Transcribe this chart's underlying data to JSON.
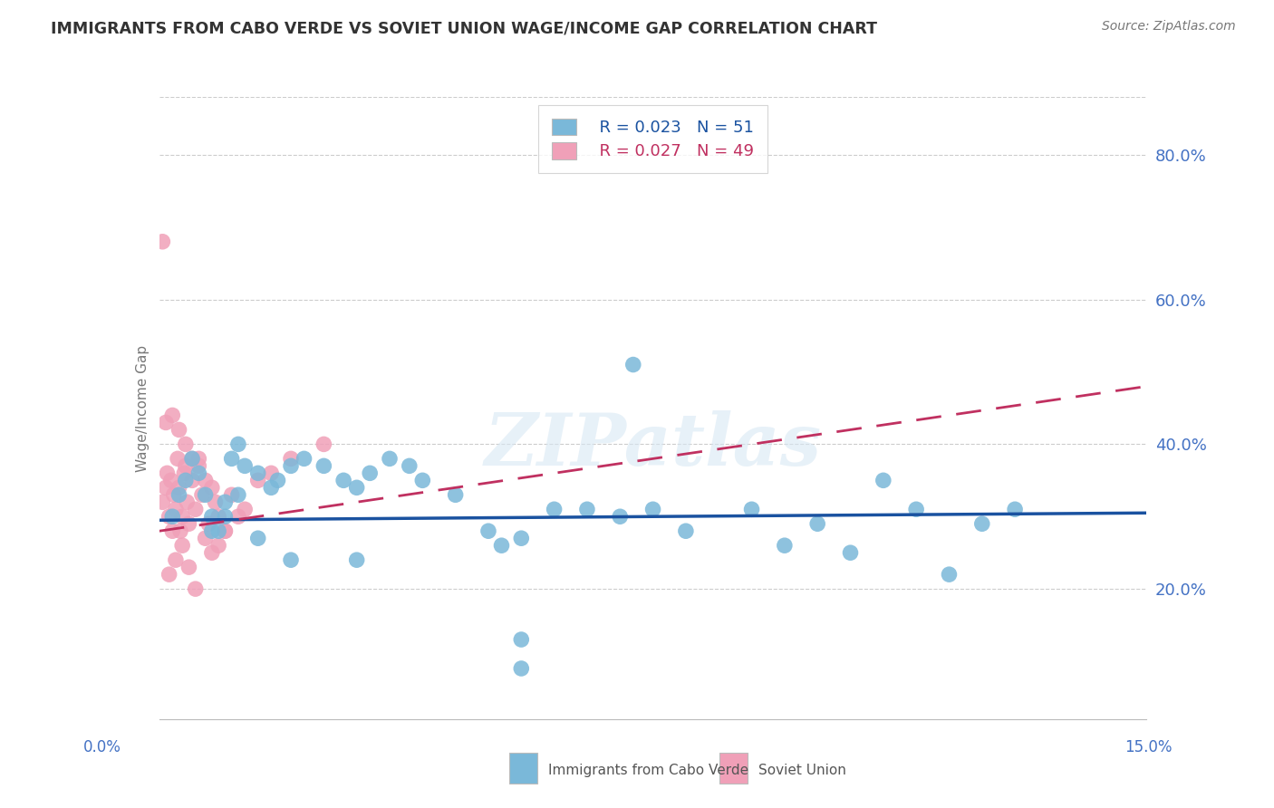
{
  "title": "IMMIGRANTS FROM CABO VERDE VS SOVIET UNION WAGE/INCOME GAP CORRELATION CHART",
  "source": "Source: ZipAtlas.com",
  "ylabel": "Wage/Income Gap",
  "xmin": 0.0,
  "xmax": 15.0,
  "ymin": 2.0,
  "ymax": 88.0,
  "yticks": [
    20.0,
    40.0,
    60.0,
    80.0
  ],
  "legend_cabo": "Immigrants from Cabo Verde",
  "legend_soviet": "Soviet Union",
  "R_cabo": "0.023",
  "N_cabo": "51",
  "R_soviet": "0.027",
  "N_soviet": "49",
  "color_cabo": "#7ab8d9",
  "color_soviet": "#f0a0b8",
  "color_trendline_cabo": "#1a52a0",
  "color_trendline_soviet": "#c03060",
  "watermark": "ZIPatlas",
  "cabo_x": [
    0.2,
    0.3,
    0.4,
    0.5,
    0.6,
    0.7,
    0.8,
    0.9,
    1.0,
    1.1,
    1.2,
    1.3,
    1.5,
    1.7,
    1.8,
    2.0,
    2.2,
    2.5,
    2.8,
    3.0,
    3.2,
    3.5,
    3.8,
    4.0,
    4.5,
    5.0,
    5.2,
    5.5,
    6.0,
    6.5,
    7.0,
    7.5,
    8.0,
    9.0,
    9.5,
    10.0,
    10.5,
    11.0,
    11.5,
    12.0,
    12.5,
    13.0,
    0.8,
    1.0,
    1.2,
    1.5,
    2.0,
    3.0,
    5.5,
    7.2,
    5.5
  ],
  "cabo_y": [
    30,
    33,
    35,
    38,
    36,
    33,
    30,
    28,
    32,
    38,
    40,
    37,
    36,
    34,
    35,
    37,
    38,
    37,
    35,
    34,
    36,
    38,
    37,
    35,
    33,
    28,
    26,
    27,
    31,
    31,
    30,
    31,
    28,
    31,
    26,
    29,
    25,
    35,
    31,
    22,
    29,
    31,
    28,
    30,
    33,
    27,
    24,
    24,
    13,
    51,
    9
  ],
  "soviet_x": [
    0.05,
    0.1,
    0.12,
    0.15,
    0.18,
    0.2,
    0.22,
    0.25,
    0.28,
    0.3,
    0.32,
    0.35,
    0.38,
    0.4,
    0.42,
    0.45,
    0.5,
    0.55,
    0.6,
    0.65,
    0.7,
    0.75,
    0.8,
    0.85,
    0.9,
    1.0,
    1.1,
    1.2,
    1.3,
    1.5,
    1.7,
    2.0,
    2.5,
    0.1,
    0.2,
    0.3,
    0.4,
    0.5,
    0.6,
    0.7,
    0.8,
    0.9,
    1.0,
    0.15,
    0.25,
    0.35,
    0.45,
    0.55,
    0.05
  ],
  "soviet_y": [
    32,
    34,
    36,
    30,
    35,
    28,
    33,
    31,
    38,
    34,
    28,
    30,
    36,
    37,
    32,
    29,
    35,
    31,
    38,
    33,
    27,
    29,
    34,
    32,
    30,
    28,
    33,
    30,
    31,
    35,
    36,
    38,
    40,
    43,
    44,
    42,
    40,
    38,
    37,
    35,
    25,
    26,
    28,
    22,
    24,
    26,
    23,
    20,
    68
  ]
}
